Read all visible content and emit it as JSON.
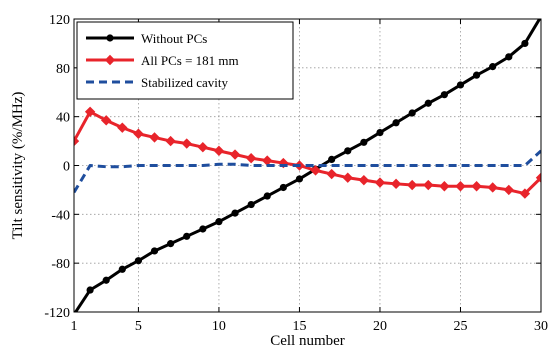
{
  "chart_data": {
    "type": "line",
    "xlabel": "Cell number",
    "ylabel": "Tilt sensitivity (%/MHz)",
    "xlim": [
      1,
      30
    ],
    "ylim": [
      -120,
      120
    ],
    "xticks": [
      1,
      5,
      10,
      15,
      20,
      25,
      30
    ],
    "yticks": [
      -120,
      -80,
      -40,
      0,
      40,
      80,
      120
    ],
    "grid": true,
    "legend_position": "top-left",
    "series": [
      {
        "name": "Without PCs",
        "color": "#000000",
        "style": "solid",
        "marker": "circle",
        "x": [
          1,
          2,
          3,
          4,
          5,
          6,
          7,
          8,
          9,
          10,
          11,
          12,
          13,
          14,
          15,
          16,
          17,
          18,
          19,
          20,
          21,
          22,
          23,
          24,
          25,
          26,
          27,
          28,
          29,
          30
        ],
        "y": [
          -122,
          -102,
          -94,
          -85,
          -78,
          -70,
          -64,
          -58,
          -52,
          -46,
          -39,
          -32,
          -25,
          -18,
          -11,
          -3,
          5,
          12,
          19,
          27,
          35,
          43,
          51,
          58,
          66,
          74,
          81,
          89,
          100,
          122
        ]
      },
      {
        "name": "All PCs = 181 mm",
        "color": "#e8242b",
        "style": "solid",
        "marker": "diamond",
        "x": [
          1,
          2,
          3,
          4,
          5,
          6,
          7,
          8,
          9,
          10,
          11,
          12,
          13,
          14,
          15,
          16,
          17,
          18,
          19,
          20,
          21,
          22,
          23,
          24,
          25,
          26,
          27,
          28,
          29,
          30
        ],
        "y": [
          20,
          44,
          37,
          31,
          26,
          23,
          20,
          18,
          15,
          12,
          9,
          6,
          4,
          2,
          0,
          -4,
          -7,
          -10,
          -12,
          -14,
          -15,
          -16,
          -16,
          -17,
          -17,
          -17,
          -18,
          -20,
          -23,
          -10
        ]
      },
      {
        "name": "Stabilized cavity",
        "color": "#1f4e9e",
        "style": "dashed",
        "marker": "none",
        "x": [
          1,
          2,
          3,
          4,
          5,
          6,
          7,
          8,
          9,
          10,
          11,
          12,
          13,
          14,
          15,
          16,
          17,
          18,
          19,
          20,
          21,
          22,
          23,
          24,
          25,
          26,
          27,
          28,
          29,
          30
        ],
        "y": [
          -22,
          0,
          -1,
          -1,
          0,
          0,
          0,
          0,
          0,
          1,
          1,
          0,
          0,
          0,
          0,
          0,
          0,
          0,
          0,
          0,
          0,
          0,
          0,
          0,
          0,
          0,
          0,
          0,
          0,
          12
        ]
      }
    ]
  }
}
